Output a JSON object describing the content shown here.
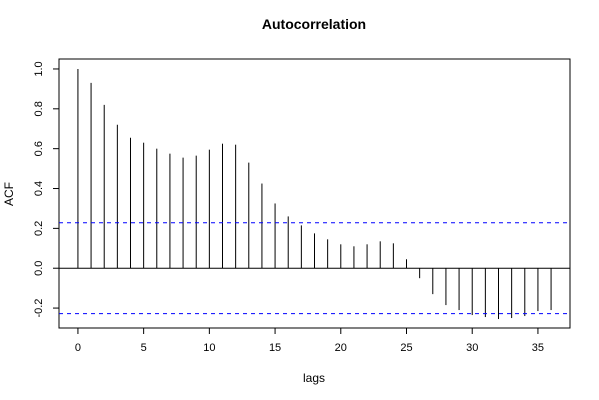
{
  "chart_data": {
    "type": "bar",
    "title": "Autocorrelation",
    "xlabel": "lags",
    "ylabel": "ACF",
    "xlim": [
      -1.44,
      37.44
    ],
    "ylim": [
      -0.3,
      1.05
    ],
    "x_ticks": [
      0,
      5,
      10,
      15,
      20,
      25,
      30,
      35
    ],
    "y_ticks": [
      -0.2,
      0.0,
      0.2,
      0.4,
      0.6,
      0.8,
      1.0
    ],
    "y_tick_labels": [
      "-0.2",
      "0.0",
      "0.2",
      "0.4",
      "0.6",
      "0.8",
      "1.0"
    ],
    "zero_line": true,
    "confidence_bounds": [
      0.228,
      -0.228
    ],
    "confidence_color": "#0000ff",
    "lags": [
      0,
      1,
      2,
      3,
      4,
      5,
      6,
      7,
      8,
      9,
      10,
      11,
      12,
      13,
      14,
      15,
      16,
      17,
      18,
      19,
      20,
      21,
      22,
      23,
      24,
      25,
      26,
      27,
      28,
      29,
      30,
      31,
      32,
      33,
      34,
      35,
      36
    ],
    "acf": [
      1.0,
      0.93,
      0.82,
      0.72,
      0.655,
      0.63,
      0.6,
      0.575,
      0.555,
      0.565,
      0.595,
      0.625,
      0.62,
      0.53,
      0.425,
      0.325,
      0.26,
      0.215,
      0.175,
      0.145,
      0.12,
      0.11,
      0.12,
      0.135,
      0.125,
      0.045,
      -0.05,
      -0.13,
      -0.185,
      -0.21,
      -0.235,
      -0.245,
      -0.255,
      -0.25,
      -0.24,
      -0.215,
      -0.21
    ]
  }
}
